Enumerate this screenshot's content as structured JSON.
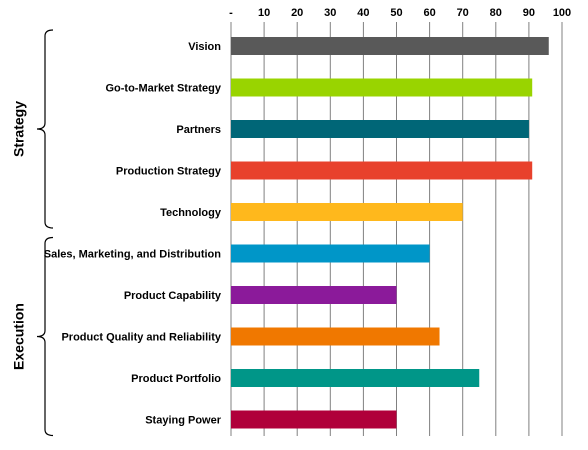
{
  "chart_data": {
    "type": "bar",
    "orientation": "horizontal",
    "title": "",
    "xlabel": "",
    "ylabel": "",
    "xlim": [
      0,
      100
    ],
    "x_ticks": [
      "-",
      "10",
      "20",
      "30",
      "40",
      "50",
      "60",
      "70",
      "80",
      "90",
      "100"
    ],
    "x_axis_position": "top",
    "grid": true,
    "legend": "none",
    "categories": [
      "Vision",
      "Go-to-Market Strategy",
      "Partners",
      "Production Strategy",
      "Technology",
      "Sales, Marketing, and Distribution",
      "Product Capability",
      "Product Quality and Reliability",
      "Product Portfolio",
      "Staying Power"
    ],
    "values": [
      96,
      91,
      90,
      91,
      70,
      60,
      50,
      63,
      75,
      50
    ],
    "colors": [
      "#595959",
      "#99d400",
      "#006677",
      "#e8412c",
      "#ffb81c",
      "#0096c8",
      "#8b1a9a",
      "#f07800",
      "#009688",
      "#b0003a"
    ],
    "groups": [
      {
        "name": "Strategy",
        "from": 0,
        "to": 4
      },
      {
        "name": "Execution",
        "from": 5,
        "to": 9
      }
    ]
  }
}
